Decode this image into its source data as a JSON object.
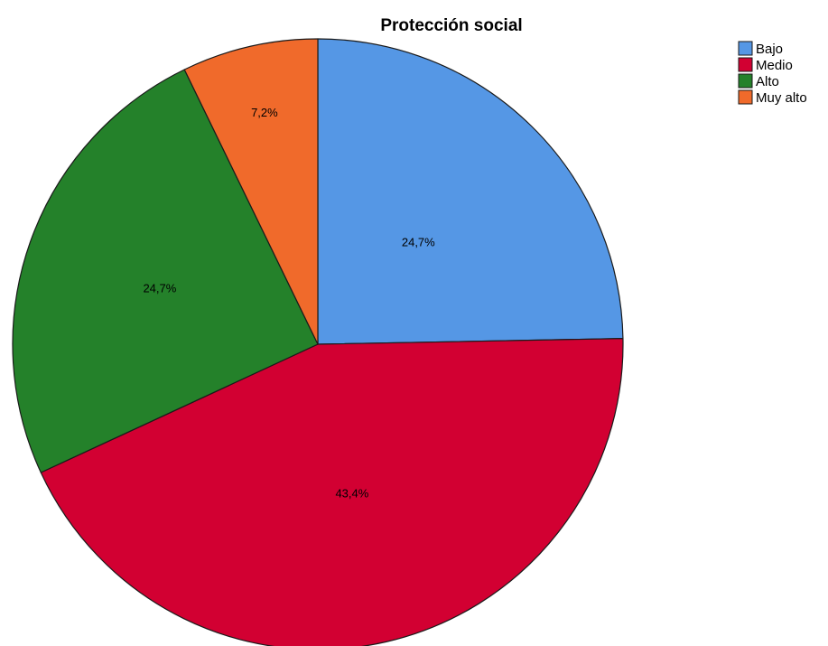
{
  "chart_data": {
    "type": "pie",
    "title": "Protección social",
    "categories": [
      "Bajo",
      "Medio",
      "Alto",
      "Muy alto"
    ],
    "values": [
      24.7,
      43.4,
      24.7,
      7.2
    ],
    "labels": [
      "24,7%",
      "43,4%",
      "24,7%",
      "7,2%"
    ],
    "colors": [
      "#5597e5",
      "#d20032",
      "#24812a",
      "#f06a2b"
    ],
    "legend_position": "top-right",
    "start": "top, clockwise"
  }
}
